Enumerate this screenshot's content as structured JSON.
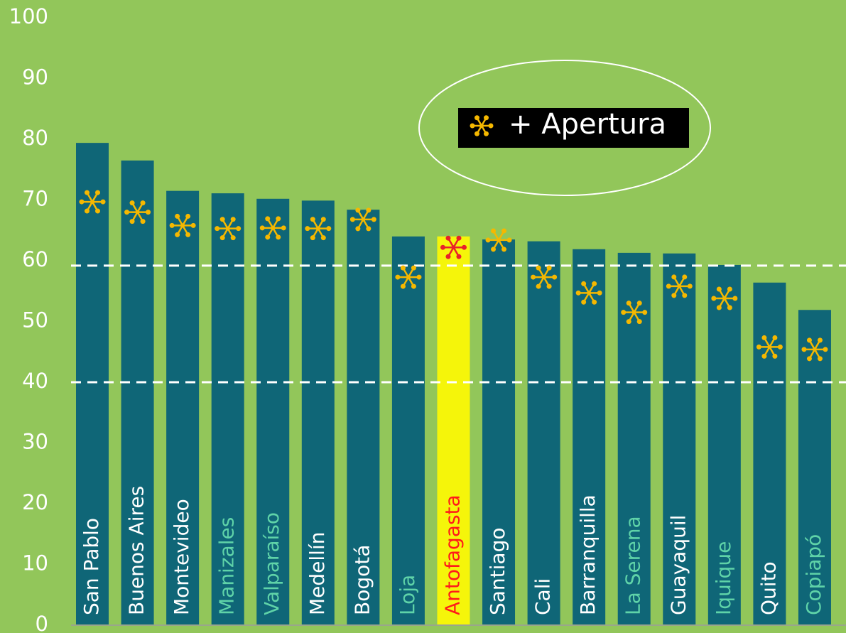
{
  "chart_data": {
    "type": "bar",
    "categories": [
      "San Pablo",
      "Buenos Aires",
      "Montevideo",
      "Manizales",
      "Valparaíso",
      "Medellín",
      "Bogotá",
      "Loja",
      "Antofagasta",
      "Santiago",
      "Cali",
      "Barranquilla",
      "La Serena",
      "Guayaquil",
      "Iquique",
      "Quito",
      "Copiapó"
    ],
    "values": [
      79.4,
      76.5,
      71.5,
      71.1,
      70.2,
      69.9,
      68.4,
      64.0,
      64.0,
      63.5,
      63.2,
      61.9,
      61.3,
      61.2,
      59.3,
      56.4,
      51.9
    ],
    "colors": [
      "#0f6677",
      "#0f6677",
      "#0f6677",
      "#0f6677",
      "#0f6677",
      "#0f6677",
      "#0f6677",
      "#0f6677",
      "#f5f50a",
      "#0f6677",
      "#0f6677",
      "#0f6677",
      "#0f6677",
      "#0f6677",
      "#0f6677",
      "#0f6677",
      "#0f6677"
    ],
    "label_colors": [
      "#ffffff",
      "#ffffff",
      "#ffffff",
      "#5fd3a8",
      "#5fd3a8",
      "#ffffff",
      "#ffffff",
      "#5fd3a8",
      "#ff1a1a",
      "#ffffff",
      "#ffffff",
      "#ffffff",
      "#5fd3a8",
      "#ffffff",
      "#5fd3a8",
      "#ffffff",
      "#5fd3a8"
    ],
    "markers": {
      "name": "+ Apertura",
      "values": [
        69.7,
        68.0,
        65.8,
        65.3,
        65.4,
        65.3,
        66.8,
        57.3,
        62.2,
        63.4,
        57.3,
        54.7,
        51.5,
        55.8,
        53.8,
        45.8,
        45.4
      ],
      "colors": [
        "#f5b800",
        "#f5b800",
        "#f5b800",
        "#f5b800",
        "#f5b800",
        "#f5b800",
        "#f5b800",
        "#f5b800",
        "#e8202a",
        "#f5b800",
        "#f5b800",
        "#f5b800",
        "#f5b800",
        "#f5b800",
        "#f5b800",
        "#f5b800",
        "#f5b800"
      ],
      "legend_color": "#f5b800"
    },
    "reference_lines": [
      59.2,
      40
    ],
    "ylim": [
      0,
      100
    ],
    "yticks": [
      0,
      10,
      20,
      30,
      40,
      50,
      60,
      70,
      80,
      90,
      100
    ]
  }
}
